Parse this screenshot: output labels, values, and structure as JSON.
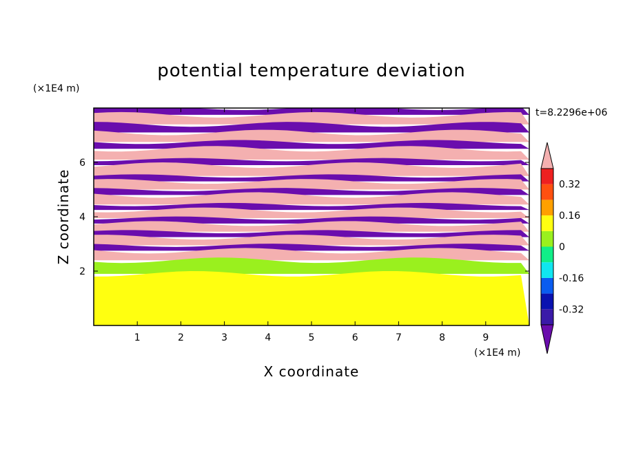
{
  "chart_data": {
    "type": "heatmap",
    "title": "potential temperature deviation",
    "xlabel": "X coordinate",
    "ylabel": "Z coordinate",
    "x_unit": "(×1E4 m)",
    "y_unit": "(×1E4 m)",
    "time_label": "t=8.2296e+06",
    "xlim": [
      0,
      10
    ],
    "ylim": [
      0,
      8
    ],
    "x_ticks": [
      1,
      2,
      3,
      4,
      5,
      6,
      7,
      8,
      9
    ],
    "y_ticks": [
      2,
      4,
      6
    ],
    "x_tick_labels": [
      "1",
      "2",
      "3",
      "4",
      "5",
      "6",
      "7",
      "8",
      "9"
    ],
    "y_tick_labels": [
      "2",
      "4",
      "6"
    ],
    "colorbar": {
      "labels": [
        "0.32",
        "0.16",
        "0",
        "-0.16",
        "-0.32"
      ],
      "label_values": [
        0.32,
        0.16,
        0,
        -0.16,
        -0.32
      ],
      "levels": [
        -0.4,
        -0.32,
        -0.24,
        -0.16,
        -0.08,
        0,
        0.08,
        0.16,
        0.24,
        0.32,
        0.4
      ],
      "colors": [
        "#6a0dad",
        "#3a1aa8",
        "#0a12b0",
        "#0a5cf0",
        "#10e6f0",
        "#10ee88",
        "#9af01e",
        "#ffff10",
        "#ffa000",
        "#ff5010",
        "#ee2020",
        "#f4b0b0"
      ],
      "under_color": "#6a0dad",
      "over_color": "#f4b0b0"
    },
    "bands": [
      {
        "z0": 7.75,
        "z1": 8.0,
        "value": -0.45
      },
      {
        "z0": 7.4,
        "z1": 7.75,
        "value": 0.45
      },
      {
        "z0": 7.1,
        "z1": 7.4,
        "value": -0.45
      },
      {
        "z0": 6.75,
        "z1": 7.1,
        "value": 0.45
      },
      {
        "z0": 6.5,
        "z1": 6.75,
        "value": -0.45
      },
      {
        "z0": 6.1,
        "z1": 6.5,
        "value": 0.45
      },
      {
        "z0": 5.9,
        "z1": 6.1,
        "value": -0.45
      },
      {
        "z0": 5.5,
        "z1": 5.9,
        "value": 0.45
      },
      {
        "z0": 5.3,
        "z1": 5.5,
        "value": -0.45
      },
      {
        "z0": 5.0,
        "z1": 5.3,
        "value": 0.45
      },
      {
        "z0": 4.8,
        "z1": 5.0,
        "value": -0.45
      },
      {
        "z0": 4.45,
        "z1": 4.8,
        "value": 0.45
      },
      {
        "z0": 4.25,
        "z1": 4.45,
        "value": -0.45
      },
      {
        "z0": 3.95,
        "z1": 4.25,
        "value": 0.45
      },
      {
        "z0": 3.75,
        "z1": 3.95,
        "value": -0.45
      },
      {
        "z0": 3.45,
        "z1": 3.75,
        "value": 0.45
      },
      {
        "z0": 3.25,
        "z1": 3.45,
        "value": -0.45
      },
      {
        "z0": 2.95,
        "z1": 3.25,
        "value": 0.45
      },
      {
        "z0": 2.75,
        "z1": 2.95,
        "value": -0.45
      },
      {
        "z0": 2.4,
        "z1": 2.75,
        "value": 0.45
      },
      {
        "z0": 1.9,
        "z1": 2.4,
        "value": 0.02
      },
      {
        "z0": 0.0,
        "z1": 1.9,
        "value": 0.1
      }
    ]
  }
}
